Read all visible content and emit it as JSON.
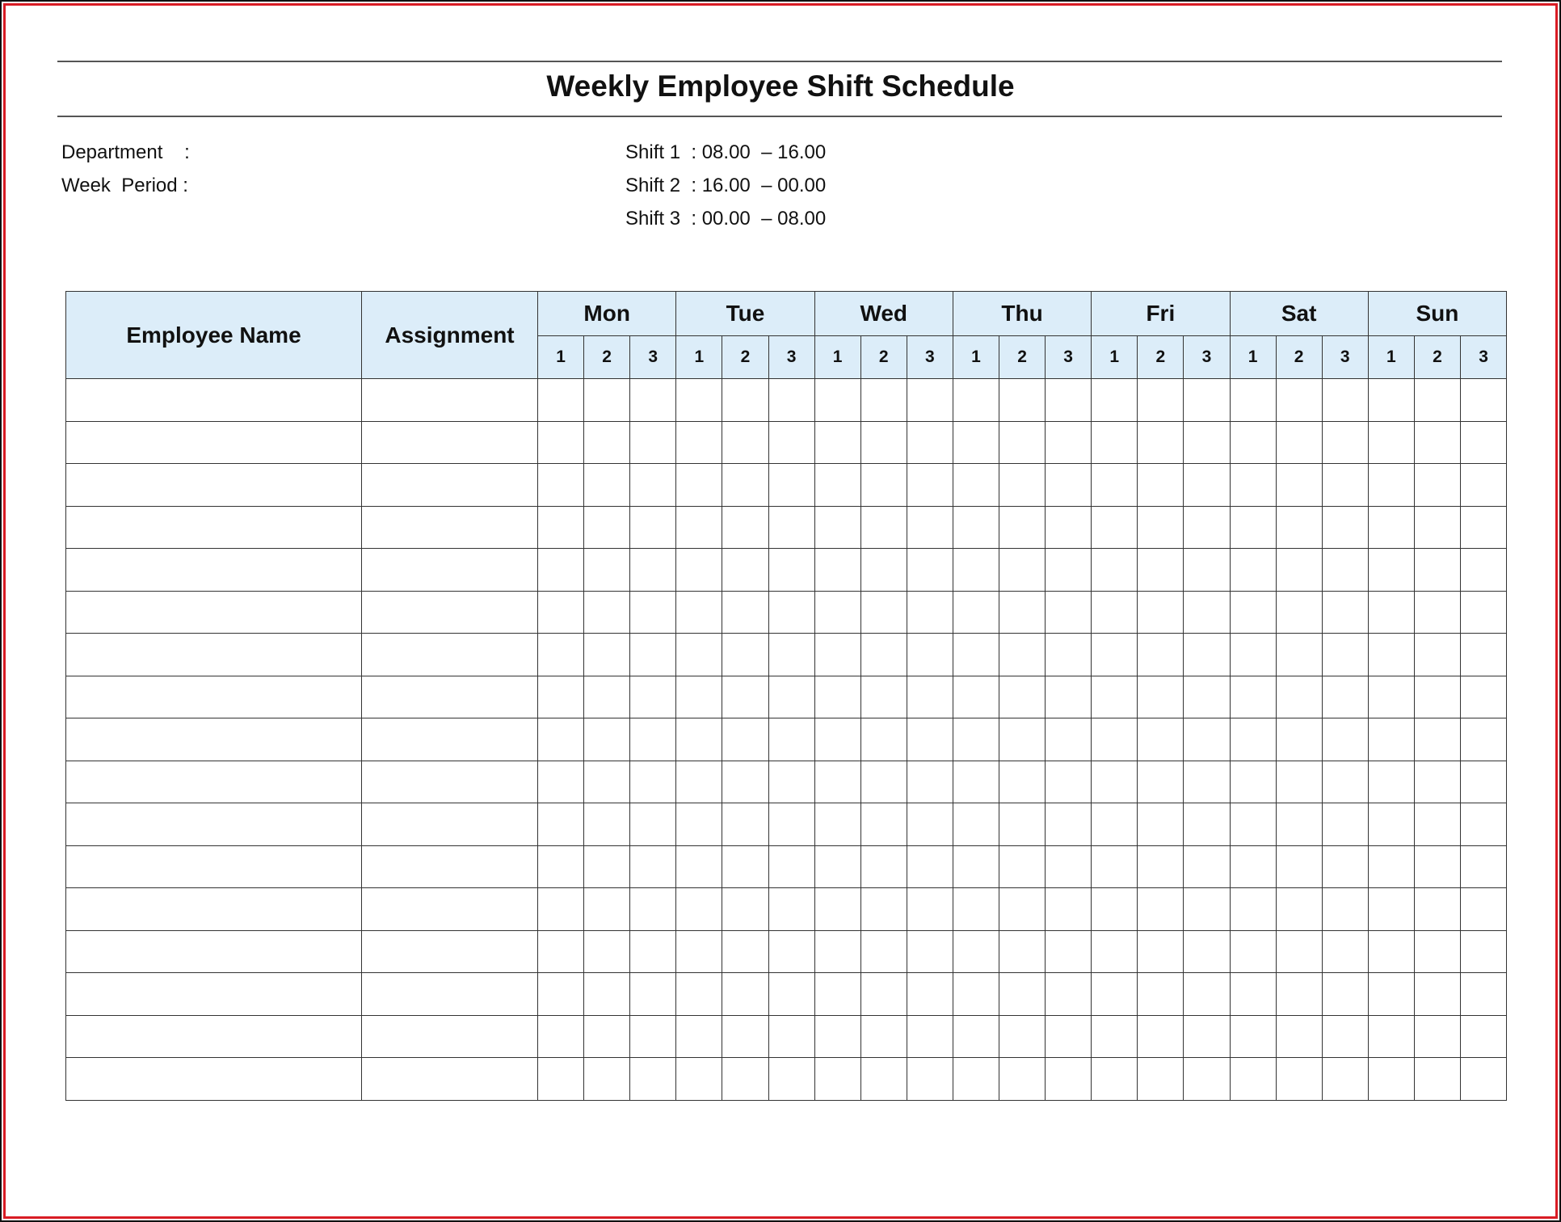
{
  "title": "Weekly Employee Shift Schedule",
  "fields": {
    "department_label": "Department    :",
    "week_period_label": "Week  Period :"
  },
  "shifts": [
    {
      "label": "Shift 1  : 08.00  – 16.00"
    },
    {
      "label": "Shift 2  : 16.00  – 00.00"
    },
    {
      "label": "Shift 3  : 00.00  – 08.00"
    }
  ],
  "table": {
    "employee_header": "Employee Name",
    "assignment_header": "Assignment",
    "days": [
      "Mon",
      "Tue",
      "Wed",
      "Thu",
      "Fri",
      "Sat",
      "Sun"
    ],
    "shift_numbers": [
      "1",
      "2",
      "3"
    ],
    "row_count": 17
  },
  "colors": {
    "header_bg": "#dcedf9",
    "frame": "#d91c24"
  }
}
